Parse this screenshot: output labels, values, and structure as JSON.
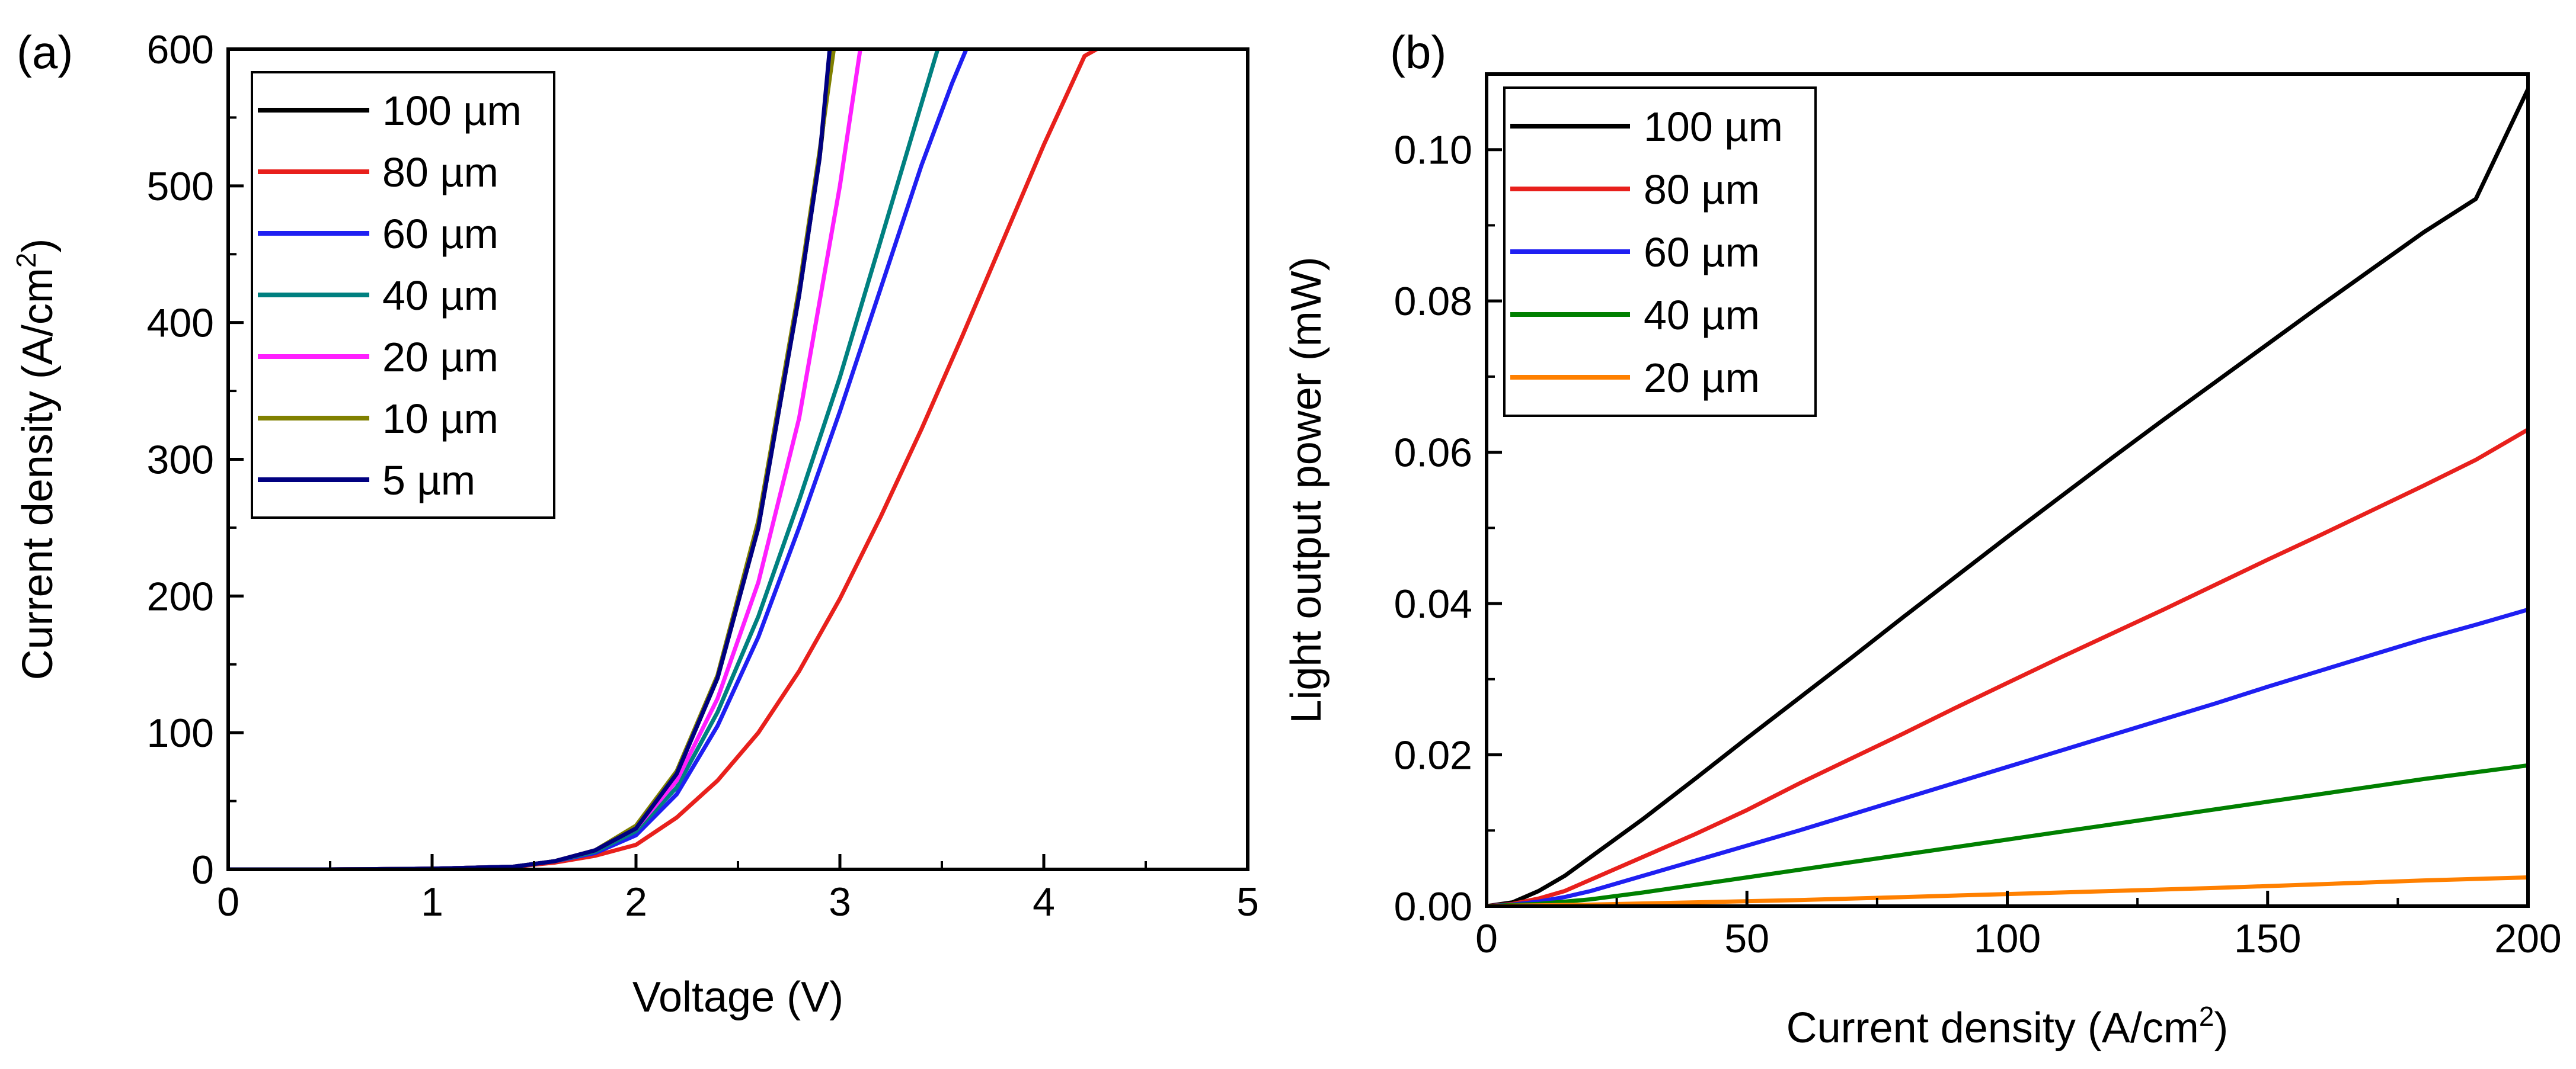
{
  "chart_data": [
    {
      "type": "line",
      "panel_label": "(a)",
      "title": "",
      "xlabel": "Voltage (V)",
      "ylabel": "Current density (A/cm",
      "ylabel_sup": "2",
      "ylabel_end": ")",
      "xlim": [
        0,
        5
      ],
      "ylim": [
        0,
        600
      ],
      "xticks": [
        "0",
        "1",
        "2",
        "3",
        "4",
        "5"
      ],
      "yticks": [
        "0",
        "100",
        "200",
        "300",
        "400",
        "500",
        "600"
      ],
      "grid": false,
      "legend_position": "top-left",
      "series": [
        {
          "name": "100 µm",
          "color": "#000000",
          "x": [
            0,
            0.5,
            1.0,
            1.4,
            1.6,
            1.8,
            2.0,
            2.2,
            2.4,
            2.6,
            2.8,
            2.9,
            2.96
          ],
          "y": [
            0,
            0,
            0.5,
            2,
            6,
            14,
            30,
            70,
            140,
            250,
            420,
            520,
            600
          ]
        },
        {
          "name": "80 µm",
          "color": "#e8201c",
          "x": [
            0,
            0.5,
            1.0,
            1.4,
            1.6,
            1.8,
            2.0,
            2.2,
            2.4,
            2.6,
            2.8,
            3.0,
            3.2,
            3.4,
            3.6,
            3.8,
            4.0,
            4.2,
            4.26
          ],
          "y": [
            0,
            0,
            0.5,
            2,
            5,
            10,
            18,
            38,
            65,
            100,
            145,
            198,
            258,
            322,
            390,
            460,
            530,
            595,
            600
          ]
        },
        {
          "name": "60 µm",
          "color": "#1f1ff2",
          "x": [
            0,
            0.5,
            1.0,
            1.4,
            1.6,
            1.8,
            2.0,
            2.2,
            2.4,
            2.6,
            2.8,
            3.0,
            3.2,
            3.4,
            3.55,
            3.62
          ],
          "y": [
            0,
            0,
            0.5,
            2,
            6,
            12,
            25,
            55,
            105,
            170,
            250,
            335,
            425,
            515,
            575,
            600
          ]
        },
        {
          "name": "40 µm",
          "color": "#008080",
          "x": [
            0,
            0.5,
            1.0,
            1.4,
            1.6,
            1.8,
            2.0,
            2.2,
            2.4,
            2.6,
            2.8,
            3.0,
            3.2,
            3.4,
            3.48
          ],
          "y": [
            0,
            0,
            0.5,
            2,
            6,
            13,
            28,
            60,
            115,
            185,
            270,
            360,
            460,
            560,
            600
          ]
        },
        {
          "name": "20 µm",
          "color": "#ff1fff",
          "x": [
            0,
            0.5,
            1.0,
            1.4,
            1.6,
            1.8,
            2.0,
            2.2,
            2.4,
            2.6,
            2.8,
            3.0,
            3.1
          ],
          "y": [
            0,
            0,
            0.5,
            2,
            6,
            14,
            30,
            65,
            125,
            210,
            330,
            500,
            600
          ]
        },
        {
          "name": "10 µm",
          "color": "#808000",
          "x": [
            0,
            0.5,
            1.0,
            1.4,
            1.6,
            1.8,
            2.0,
            2.2,
            2.4,
            2.6,
            2.8,
            2.9,
            2.97
          ],
          "y": [
            0,
            0,
            0.5,
            2,
            6,
            14,
            32,
            72,
            142,
            255,
            425,
            525,
            600
          ]
        },
        {
          "name": "5 µm",
          "color": "#000080",
          "x": [
            0,
            0.5,
            1.0,
            1.4,
            1.6,
            1.8,
            2.0,
            2.2,
            2.4,
            2.6,
            2.8,
            2.9,
            2.95
          ],
          "y": [
            0,
            0,
            0.5,
            2,
            6,
            14,
            30,
            70,
            140,
            250,
            420,
            520,
            600
          ]
        }
      ]
    },
    {
      "type": "line",
      "panel_label": "(b)",
      "title": "",
      "xlabel": "Current density (A/cm",
      "xlabel_sup": "2",
      "xlabel_end": ")",
      "ylabel": "Light output power (mW)",
      "xlim": [
        0,
        200
      ],
      "ylim": [
        0,
        0.11
      ],
      "xticks": [
        "0",
        "50",
        "100",
        "150",
        "200"
      ],
      "yticks": [
        "0.00",
        "0.02",
        "0.04",
        "0.06",
        "0.08",
        "0.10"
      ],
      "grid": false,
      "legend_position": "top-left",
      "series": [
        {
          "name": "100 µm",
          "color": "#000000",
          "x": [
            0,
            5,
            10,
            15,
            20,
            30,
            40,
            50,
            60,
            70,
            80,
            90,
            100,
            110,
            120,
            130,
            140,
            150,
            160,
            170,
            180,
            190,
            200
          ],
          "y": [
            0,
            0.0005,
            0.002,
            0.004,
            0.0065,
            0.0115,
            0.0168,
            0.0222,
            0.0275,
            0.0328,
            0.0382,
            0.0435,
            0.0488,
            0.054,
            0.0592,
            0.0643,
            0.0693,
            0.0743,
            0.0793,
            0.0842,
            0.0891,
            0.0935,
            0.108
          ]
        },
        {
          "name": "80 µm",
          "color": "#e8201c",
          "x": [
            0,
            5,
            10,
            15,
            20,
            30,
            40,
            50,
            60,
            70,
            80,
            90,
            100,
            110,
            120,
            130,
            140,
            150,
            160,
            170,
            180,
            190,
            200
          ],
          "y": [
            0,
            0.0003,
            0.001,
            0.002,
            0.0035,
            0.0065,
            0.0095,
            0.0127,
            0.0162,
            0.0195,
            0.0228,
            0.0262,
            0.0295,
            0.0328,
            0.036,
            0.0392,
            0.0425,
            0.0458,
            0.049,
            0.0523,
            0.0556,
            0.059,
            0.063
          ]
        },
        {
          "name": "60 µm",
          "color": "#1f1ff2",
          "x": [
            0,
            5,
            10,
            15,
            20,
            30,
            40,
            50,
            60,
            70,
            80,
            90,
            100,
            110,
            120,
            130,
            140,
            150,
            160,
            170,
            180,
            190,
            200
          ],
          "y": [
            0,
            0.0002,
            0.0006,
            0.0012,
            0.002,
            0.004,
            0.006,
            0.008,
            0.01,
            0.0121,
            0.0142,
            0.0163,
            0.0184,
            0.0205,
            0.0226,
            0.0247,
            0.0268,
            0.029,
            0.0311,
            0.0332,
            0.0353,
            0.0372,
            0.0392
          ]
        },
        {
          "name": "40 µm",
          "color": "#008000",
          "x": [
            0,
            10,
            20,
            30,
            40,
            50,
            60,
            70,
            80,
            90,
            100,
            110,
            120,
            130,
            140,
            150,
            160,
            170,
            180,
            190,
            200
          ],
          "y": [
            0,
            0.0003,
            0.0009,
            0.0018,
            0.0028,
            0.0038,
            0.0048,
            0.0058,
            0.0068,
            0.0078,
            0.0088,
            0.0098,
            0.0108,
            0.0118,
            0.0128,
            0.0138,
            0.0148,
            0.0158,
            0.0168,
            0.0177,
            0.0186
          ]
        },
        {
          "name": "20 µm",
          "color": "#ff8000",
          "x": [
            0,
            20,
            40,
            60,
            80,
            100,
            120,
            140,
            160,
            180,
            200
          ],
          "y": [
            0,
            0.0002,
            0.0005,
            0.0008,
            0.0012,
            0.0016,
            0.002,
            0.0024,
            0.0029,
            0.0034,
            0.0038
          ]
        }
      ]
    }
  ]
}
